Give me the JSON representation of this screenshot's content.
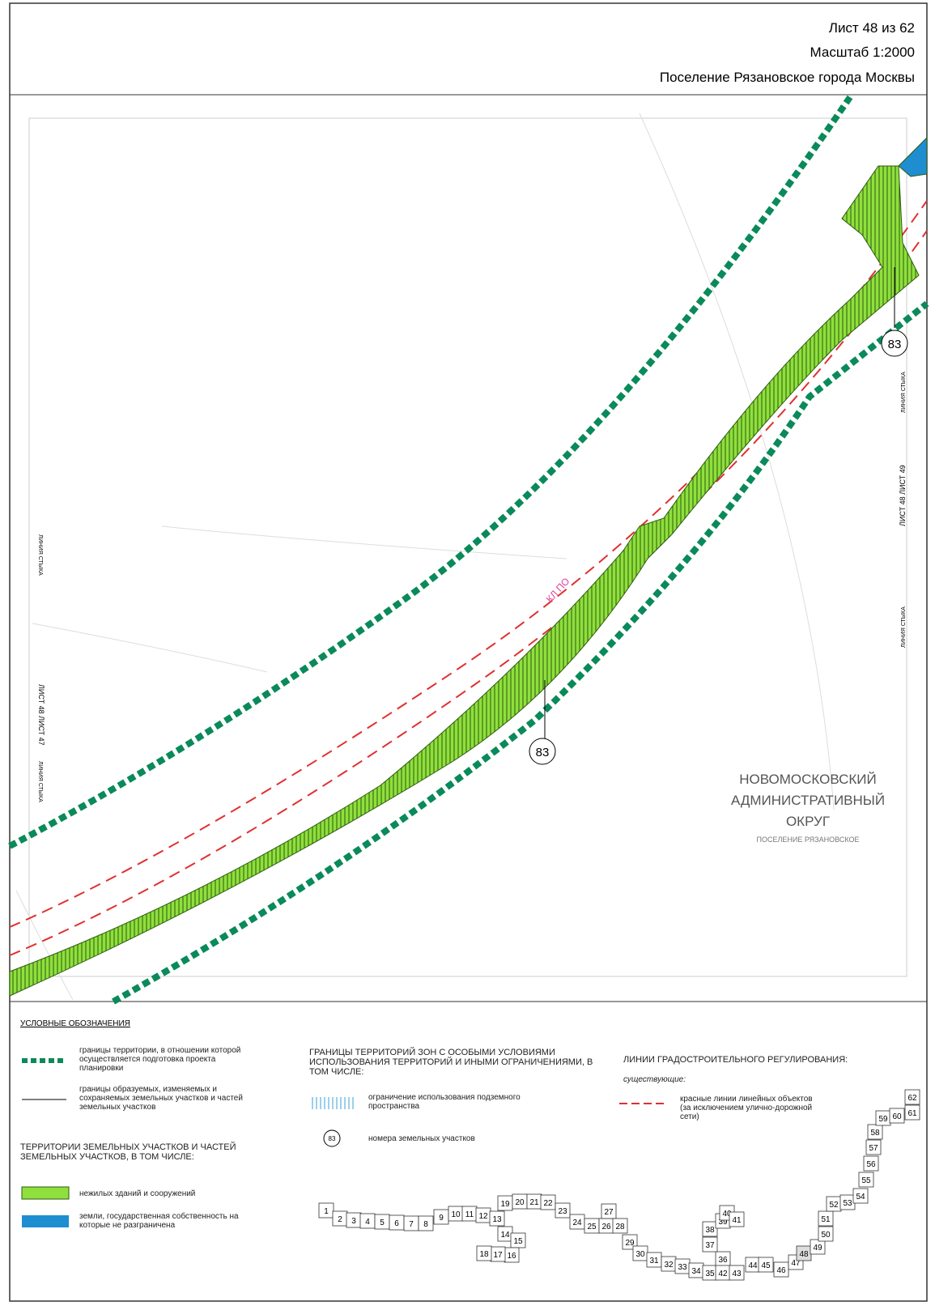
{
  "header": {
    "sheet": "Лист 48 из 62",
    "scale": "Масштаб 1:2000",
    "place": "Поселение Рязановское города Москвы"
  },
  "map": {
    "parcel_labels": [
      "83",
      "83"
    ],
    "cable_label": "КЛ ПО",
    "district": [
      "НОВОМОСКОВСКИЙ",
      "АДМИНИСТРАТИВНЫЙ",
      "ОКРУГ"
    ],
    "settlement": "ПОСЕЛЕНИЕ РЯЗАНОВСКОЕ",
    "left_side": {
      "sheets": "ЛИСТ 48 ЛИСТ 47",
      "joint": "ЛИНИЯ СТЫКА"
    },
    "right_side": {
      "sheets": "ЛИСТ 48 ЛИСТ 49",
      "joint": "ЛИНИЯ СТЫКА"
    }
  },
  "legend": {
    "title": "УСЛОВНЫЕ ОБОЗНАЧЕНИЯ",
    "items": [
      "границы территории, в отношении которой осуществляется подготовка проекта планировки",
      "границы образуемых, изменяемых и сохраняемых земельных участков и частей земельных участков"
    ],
    "territories_title": "ТЕРРИТОРИИ ЗЕМЕЛЬНЫХ УЧАСТКОВ И ЧАСТЕЙ ЗЕМЕЛЬНЫХ УЧАСТКОВ, В ТОМ ЧИСЛЕ:",
    "territories": [
      "нежилых зданий и сооружений",
      "земли, государственная собственность на которые не разграничена"
    ],
    "zones_title": "ГРАНИЦЫ ТЕРРИТОРИЙ ЗОН С ОСОБЫМИ УСЛОВИЯМИ ИСПОЛЬЗОВАНИЯ ТЕРРИТОРИЙ И ИНЫМИ ОГРАНИЧЕНИЯМИ, В ТОМ ЧИСЛЕ:",
    "zones": [
      "ограничение использования подземного пространства"
    ],
    "parcel_symbol": "83",
    "parcel_numbers": "номера земельных участков",
    "lines_title": "ЛИНИИ ГРАДОСТРОИТЕЛЬНОГО РЕГУЛИРОВАНИЯ:",
    "lines_subtitle": "существующие:",
    "lines": [
      "красные линии линейных объектов (за исключением улично-дорожной сети)"
    ]
  },
  "index_sheets": [
    "1",
    "2",
    "3",
    "4",
    "5",
    "6",
    "7",
    "8",
    "9",
    "10",
    "11",
    "12",
    "13",
    "14",
    "15",
    "16",
    "17",
    "18",
    "19",
    "20",
    "21",
    "22",
    "23",
    "24",
    "25",
    "26",
    "27",
    "28",
    "29",
    "30",
    "31",
    "32",
    "33",
    "34",
    "35",
    "36",
    "37",
    "38",
    "39",
    "40",
    "41",
    "42",
    "43",
    "44",
    "45",
    "46",
    "47",
    "48",
    "49",
    "50",
    "51",
    "52",
    "53",
    "54",
    "55",
    "56",
    "57",
    "58",
    "59",
    "60",
    "61",
    "62"
  ]
}
